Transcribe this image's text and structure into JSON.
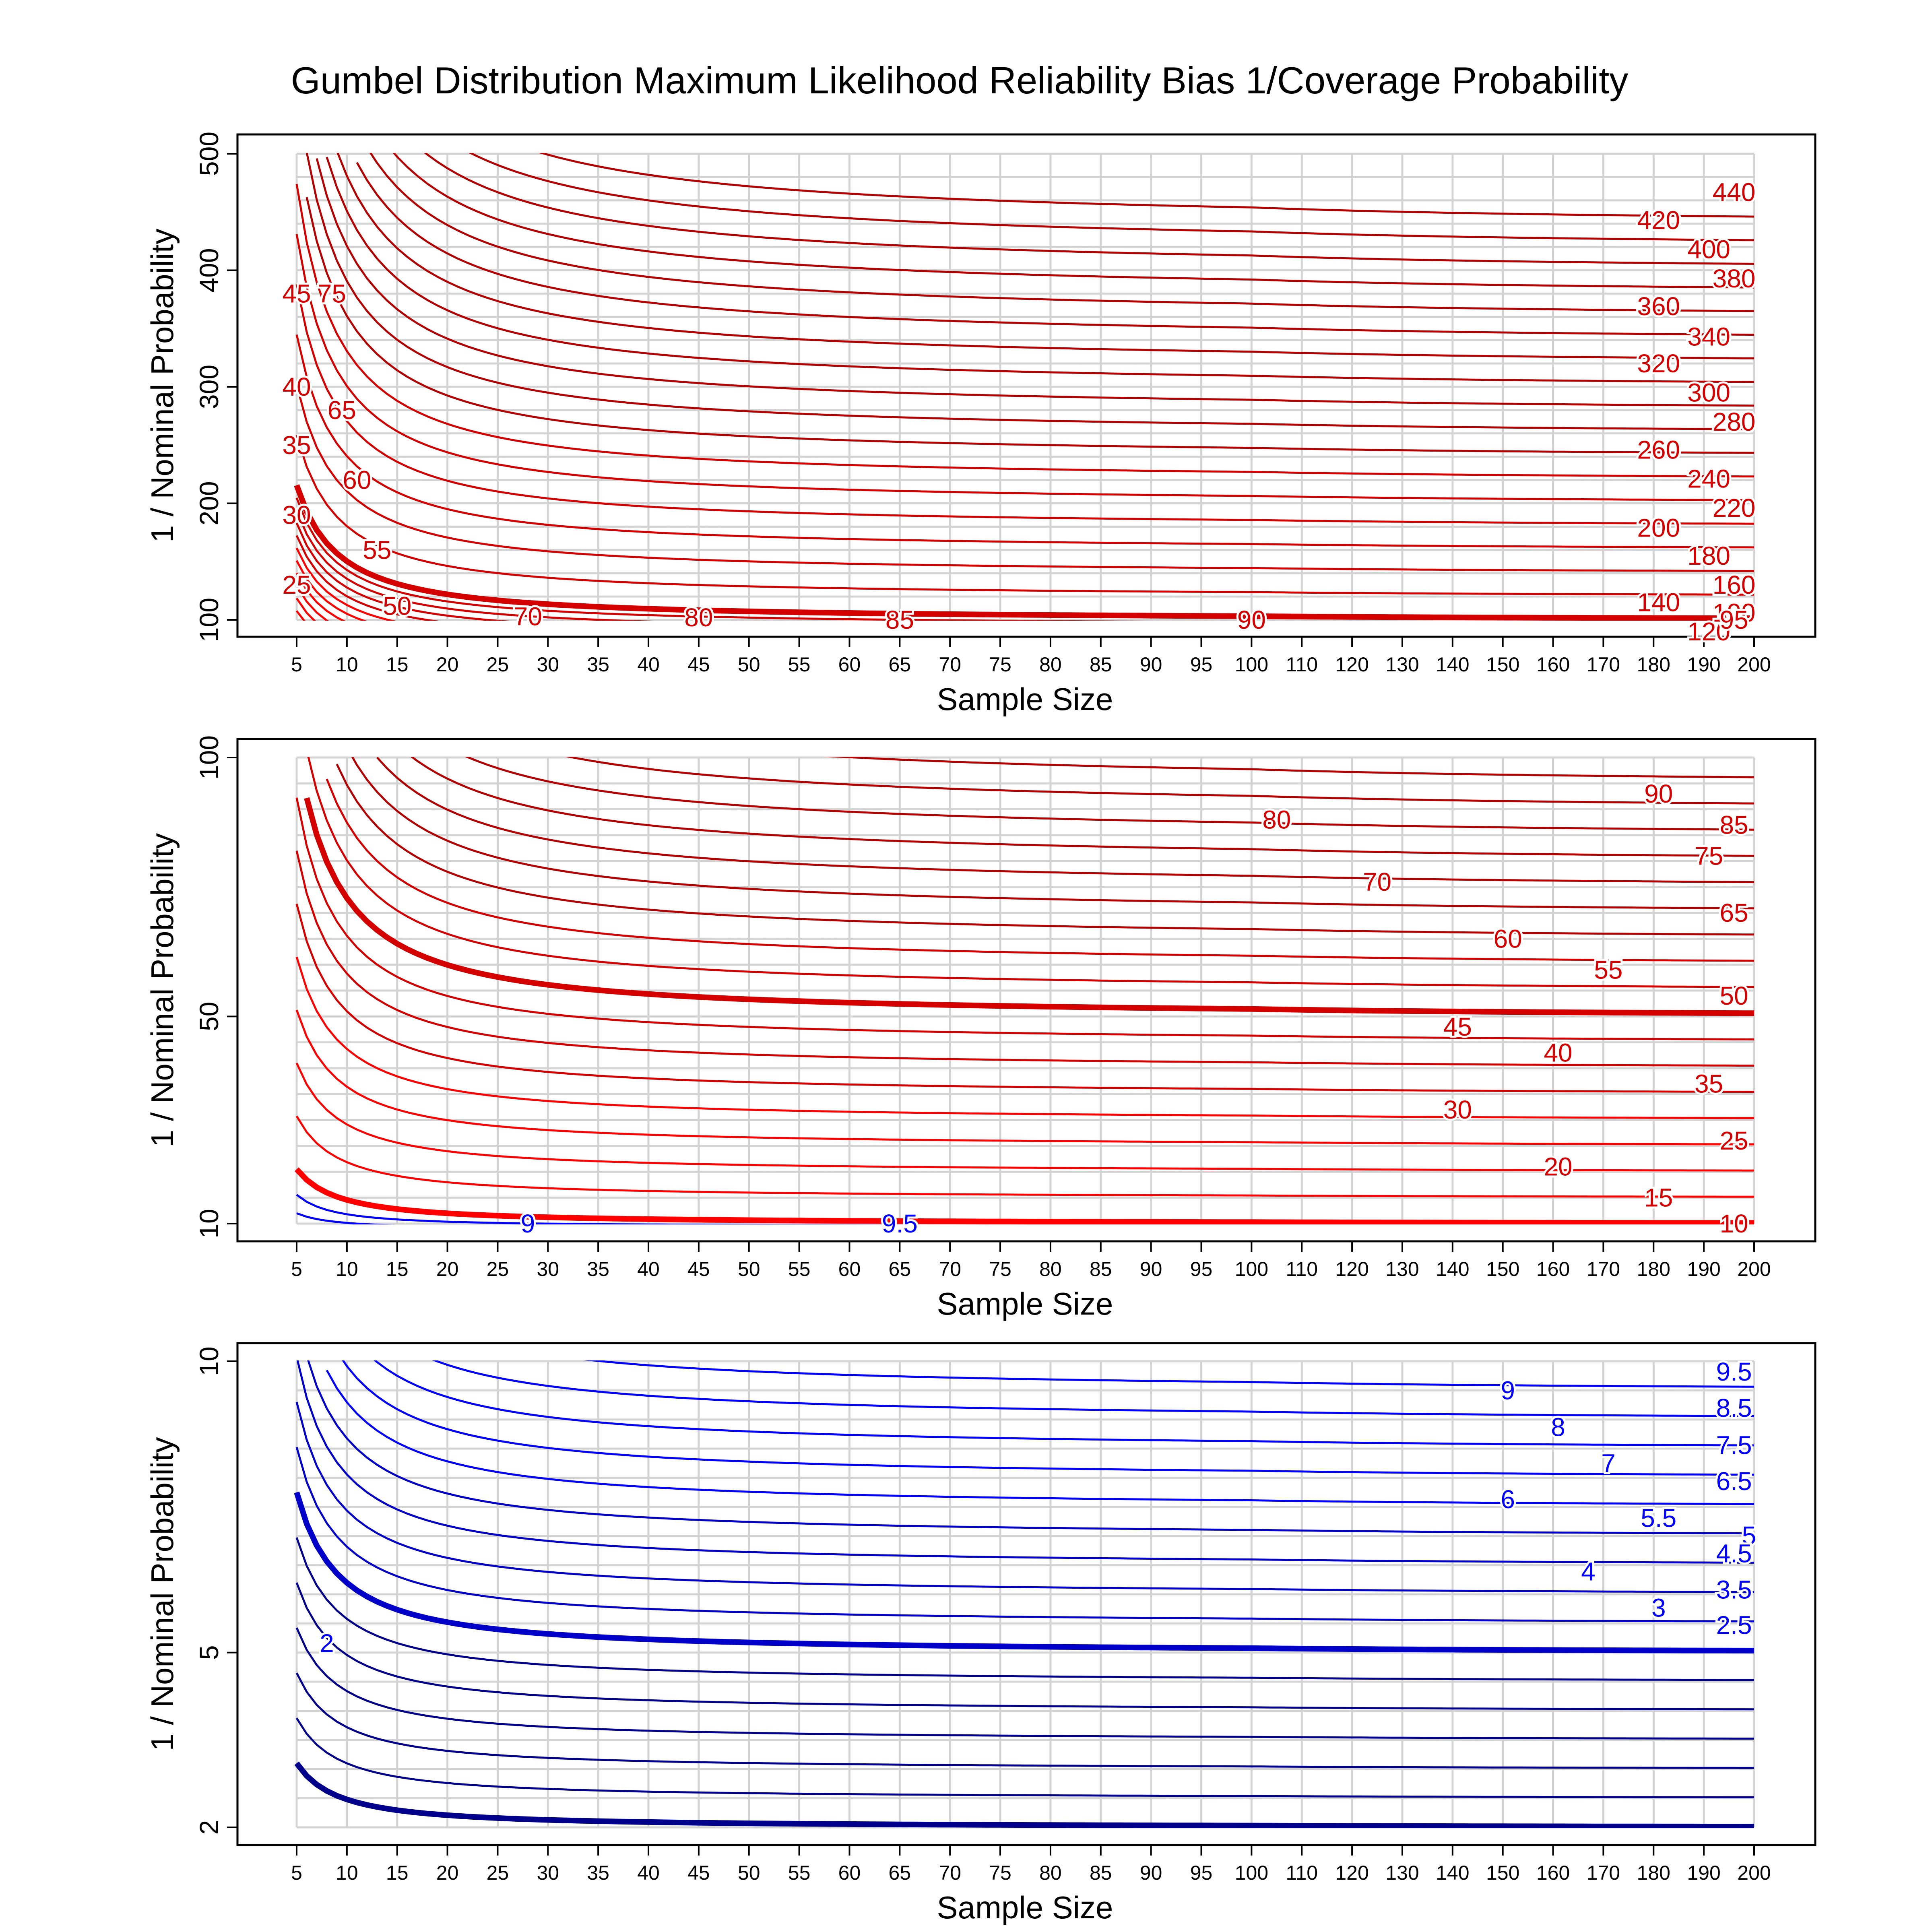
{
  "title": "Gumbel Distribution Maximum Likelihood Reliability Bias 1/Coverage Probability",
  "colors": {
    "grid": "#d3d3d3",
    "frame": "#000000",
    "red_light": "#ff0000",
    "red_mid": "#d40000",
    "red_dark": "#b30000",
    "blue_light": "#0000ff",
    "blue_mid": "#0000c8",
    "blue_dark": "#00008b"
  },
  "chart_data": [
    {
      "type": "line",
      "subtype": "contour",
      "xlabel": "Sample Size",
      "ylabel": "1 / Nominal Probability",
      "x_ticks": [
        5,
        10,
        15,
        20,
        25,
        30,
        35,
        40,
        45,
        50,
        55,
        60,
        65,
        70,
        75,
        80,
        85,
        90,
        95,
        100,
        110,
        120,
        130,
        140,
        150,
        160,
        170,
        180,
        190,
        200
      ],
      "xlim": [
        5,
        200
      ],
      "y_ticks": [
        100,
        200,
        300,
        400,
        500
      ],
      "ylim": [
        100,
        500
      ],
      "grid": true,
      "contour_levels": [
        25,
        30,
        35,
        40,
        45,
        50,
        55,
        60,
        65,
        70,
        75,
        80,
        85,
        90,
        95,
        100,
        120,
        140,
        160,
        180,
        200,
        220,
        240,
        260,
        280,
        300,
        320,
        340,
        360,
        380,
        400,
        420,
        440
      ],
      "bold_levels": [
        100
      ],
      "labels": [
        {
          "text": "440",
          "x": 196,
          "y": 467
        },
        {
          "text": "420",
          "x": 181,
          "y": 443
        },
        {
          "text": "400",
          "x": 191,
          "y": 418
        },
        {
          "text": "380",
          "x": 196,
          "y": 393
        },
        {
          "text": "360",
          "x": 181,
          "y": 369
        },
        {
          "text": "340",
          "x": 191,
          "y": 343
        },
        {
          "text": "320",
          "x": 181,
          "y": 320
        },
        {
          "text": "300",
          "x": 191,
          "y": 295
        },
        {
          "text": "280",
          "x": 196,
          "y": 270
        },
        {
          "text": "260",
          "x": 181,
          "y": 246
        },
        {
          "text": "240",
          "x": 191,
          "y": 221
        },
        {
          "text": "220",
          "x": 196,
          "y": 196
        },
        {
          "text": "200",
          "x": 181,
          "y": 179
        },
        {
          "text": "180",
          "x": 191,
          "y": 155
        },
        {
          "text": "160",
          "x": 196,
          "y": 130
        },
        {
          "text": "140",
          "x": 181,
          "y": 115
        },
        {
          "text": "120",
          "x": 191,
          "y": 90
        },
        {
          "text": "100",
          "x": 196,
          "y": 106
        },
        {
          "text": "95",
          "x": 196,
          "y": 100
        },
        {
          "text": "90",
          "x": 100,
          "y": 100
        },
        {
          "text": "85",
          "x": 65,
          "y": 100
        },
        {
          "text": "80",
          "x": 45,
          "y": 102
        },
        {
          "text": "70",
          "x": 28,
          "y": 103
        },
        {
          "text": "50",
          "x": 15,
          "y": 112
        },
        {
          "text": "55",
          "x": 13,
          "y": 160
        },
        {
          "text": "60",
          "x": 11,
          "y": 220
        },
        {
          "text": "65",
          "x": 9.5,
          "y": 280
        },
        {
          "text": "75",
          "x": 8.5,
          "y": 380
        },
        {
          "text": "45",
          "x": 5,
          "y": 380
        },
        {
          "text": "40",
          "x": 5,
          "y": 300
        },
        {
          "text": "35",
          "x": 5,
          "y": 250
        },
        {
          "text": "30",
          "x": 5,
          "y": 190
        },
        {
          "text": "25",
          "x": 5,
          "y": 130
        }
      ]
    },
    {
      "type": "line",
      "subtype": "contour",
      "xlabel": "Sample Size",
      "ylabel": "1 / Nominal Probability",
      "x_ticks": [
        5,
        10,
        15,
        20,
        25,
        30,
        35,
        40,
        45,
        50,
        55,
        60,
        65,
        70,
        75,
        80,
        85,
        90,
        95,
        100,
        110,
        120,
        130,
        140,
        150,
        160,
        170,
        180,
        190,
        200
      ],
      "xlim": [
        5,
        200
      ],
      "y_ticks": [
        10,
        50,
        100
      ],
      "ylim": [
        10,
        100
      ],
      "grid": true,
      "contour_levels": [
        9,
        9.5,
        10,
        15,
        20,
        25,
        30,
        35,
        40,
        45,
        50,
        55,
        60,
        65,
        70,
        75,
        80,
        85,
        90,
        95
      ],
      "bold_levels": [
        10,
        50
      ],
      "labels": [
        {
          "text": "90",
          "x": 181,
          "y": 93
        },
        {
          "text": "85",
          "x": 196,
          "y": 87
        },
        {
          "text": "80",
          "x": 105,
          "y": 88
        },
        {
          "text": "75",
          "x": 191,
          "y": 81
        },
        {
          "text": "70",
          "x": 125,
          "y": 76
        },
        {
          "text": "65",
          "x": 196,
          "y": 70
        },
        {
          "text": "60",
          "x": 151,
          "y": 65
        },
        {
          "text": "55",
          "x": 171,
          "y": 59
        },
        {
          "text": "50",
          "x": 196,
          "y": 54
        },
        {
          "text": "45",
          "x": 141,
          "y": 48
        },
        {
          "text": "40",
          "x": 161,
          "y": 43
        },
        {
          "text": "35",
          "x": 191,
          "y": 37
        },
        {
          "text": "30",
          "x": 141,
          "y": 32
        },
        {
          "text": "25",
          "x": 196,
          "y": 26
        },
        {
          "text": "20",
          "x": 161,
          "y": 21
        },
        {
          "text": "15",
          "x": 181,
          "y": 15
        },
        {
          "text": "10",
          "x": 196,
          "y": 10
        },
        {
          "text": "9",
          "x": 28,
          "y": 10
        },
        {
          "text": "9.5",
          "x": 65,
          "y": 10
        }
      ]
    },
    {
      "type": "line",
      "subtype": "contour",
      "xlabel": "Sample Size",
      "ylabel": "1 / Nominal Probability",
      "x_ticks": [
        5,
        10,
        15,
        20,
        25,
        30,
        35,
        40,
        45,
        50,
        55,
        60,
        65,
        70,
        75,
        80,
        85,
        90,
        95,
        100,
        110,
        120,
        130,
        140,
        150,
        160,
        170,
        180,
        190,
        200
      ],
      "xlim": [
        5,
        200
      ],
      "y_ticks": [
        2,
        5,
        10
      ],
      "ylim": [
        2,
        10
      ],
      "grid": true,
      "contour_levels": [
        2,
        2.5,
        3,
        3.5,
        4,
        4.5,
        5,
        5.5,
        6,
        6.5,
        7,
        7.5,
        8,
        8.5,
        9,
        9.5
      ],
      "bold_levels": [
        2,
        5
      ],
      "labels": [
        {
          "text": "9.5",
          "x": 196,
          "y": 9.82
        },
        {
          "text": "9",
          "x": 151,
          "y": 9.5
        },
        {
          "text": "8.5",
          "x": 196,
          "y": 9.2
        },
        {
          "text": "8",
          "x": 161,
          "y": 8.87
        },
        {
          "text": "7.5",
          "x": 196,
          "y": 8.56
        },
        {
          "text": "7",
          "x": 171,
          "y": 8.25
        },
        {
          "text": "6.5",
          "x": 196,
          "y": 7.94
        },
        {
          "text": "6",
          "x": 151,
          "y": 7.63
        },
        {
          "text": "5.5",
          "x": 181,
          "y": 7.31
        },
        {
          "text": "5",
          "x": 199,
          "y": 7.01
        },
        {
          "text": "4.5",
          "x": 196,
          "y": 6.7
        },
        {
          "text": "4",
          "x": 167,
          "y": 6.39
        },
        {
          "text": "3.5",
          "x": 196,
          "y": 6.08
        },
        {
          "text": "3",
          "x": 181,
          "y": 5.77
        },
        {
          "text": "2.5",
          "x": 196,
          "y": 5.47
        },
        {
          "text": "2",
          "x": 8,
          "y": 5.16
        }
      ]
    }
  ]
}
